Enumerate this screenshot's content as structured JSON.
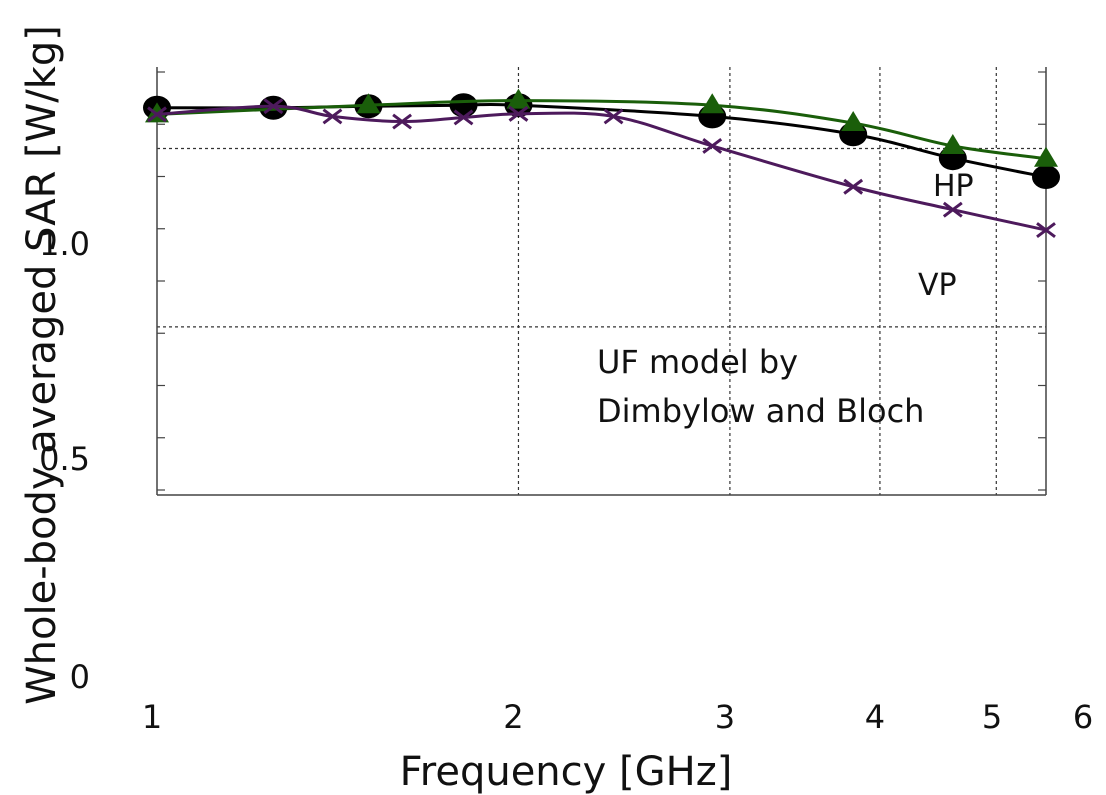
{
  "chart_data": {
    "type": "line",
    "title": "",
    "xlabel": "Frequency [GHz]",
    "ylabel": "Whole-body averaged SAR [W/kg]",
    "x_scale": "log",
    "xlim": [
      1,
      5.5
    ],
    "ylim_axis": [
      0,
      1.25
    ],
    "plot_ylim": [
      0.42,
      1.26
    ],
    "x_ticks": [
      1,
      2,
      3,
      4,
      5,
      6
    ],
    "x_tick_labels": [
      "1",
      "2",
      "3",
      "4",
      "5",
      "6"
    ],
    "x_gridlines": [
      2,
      3,
      4,
      5
    ],
    "y_ticks": [
      0,
      0.5,
      1.0
    ],
    "y_tick_labels": [
      "0",
      "0.5",
      "1.0"
    ],
    "y_gridlines": [
      0.75,
      1.1
    ],
    "grid": true,
    "annotation": [
      "UF model by",
      "Dimbylow and Bloch"
    ],
    "series": [
      {
        "name": "HP",
        "color": "#000000",
        "marker": "circle",
        "x": [
          1.0,
          1.25,
          1.5,
          1.8,
          2.0,
          2.9,
          3.8,
          4.6,
          5.5
        ],
        "y": [
          1.18,
          1.18,
          1.183,
          1.185,
          1.185,
          1.163,
          1.128,
          1.081,
          1.044
        ]
      },
      {
        "name": "",
        "color": "#1a5e0a",
        "marker": "triangle",
        "x": [
          1.0,
          1.5,
          2.0,
          2.9,
          3.8,
          4.6,
          5.5
        ],
        "y": [
          1.167,
          1.185,
          1.194,
          1.185,
          1.15,
          1.105,
          1.08
        ]
      },
      {
        "name": "VP",
        "color": "#4d1a5c",
        "marker": "x",
        "x": [
          1.0,
          1.25,
          1.4,
          1.6,
          1.8,
          2.0,
          2.4,
          2.9,
          3.8,
          4.6,
          5.5
        ],
        "y": [
          1.167,
          1.183,
          1.163,
          1.153,
          1.161,
          1.168,
          1.163,
          1.105,
          1.025,
          0.98,
          0.94
        ]
      }
    ]
  }
}
